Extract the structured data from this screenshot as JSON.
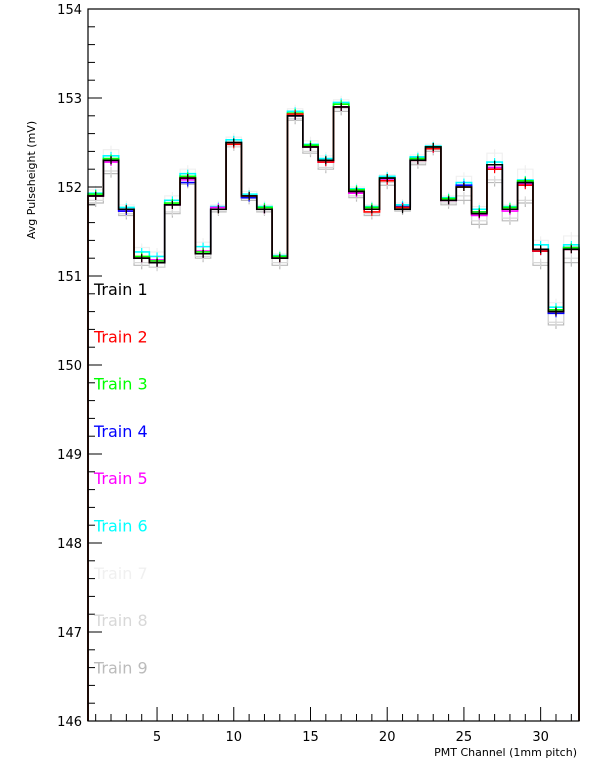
{
  "chart_data": {
    "type": "line",
    "xlabel": "PMT Channel (1mm pitch)",
    "ylabel": "Avg Pulseheight (mV)",
    "xlim": [
      0.5,
      32.5
    ],
    "ylim": [
      146,
      154
    ],
    "x_ticks": [
      5,
      10,
      15,
      20,
      25,
      30
    ],
    "y_ticks": [
      146,
      147,
      148,
      149,
      150,
      151,
      152,
      153,
      154
    ],
    "x": [
      1,
      2,
      3,
      4,
      5,
      6,
      7,
      8,
      9,
      10,
      11,
      12,
      13,
      14,
      15,
      16,
      17,
      18,
      19,
      20,
      21,
      22,
      23,
      24,
      25,
      26,
      27,
      28,
      29,
      30,
      31,
      32
    ],
    "legend_placement": "left",
    "series": [
      {
        "name": "Train 1",
        "color": "#000000",
        "values": [
          151.9,
          152.3,
          151.75,
          151.2,
          151.15,
          151.8,
          152.1,
          151.25,
          151.75,
          152.5,
          151.9,
          151.75,
          151.2,
          152.8,
          152.45,
          152.3,
          152.9,
          151.95,
          151.75,
          152.1,
          151.75,
          152.3,
          152.45,
          151.85,
          152.0,
          151.7,
          152.25,
          151.75,
          152.05,
          151.3,
          150.6,
          151.3
        ]
      },
      {
        "name": "Train 2",
        "color": "#ff0000",
        "values": [
          151.9,
          152.3,
          151.75,
          151.2,
          151.15,
          151.8,
          152.1,
          151.25,
          151.75,
          152.48,
          151.9,
          151.75,
          151.2,
          152.82,
          152.45,
          152.28,
          152.9,
          151.95,
          151.72,
          152.07,
          151.77,
          152.3,
          152.43,
          151.85,
          152.0,
          151.7,
          152.2,
          151.75,
          152.02,
          151.28,
          150.6,
          151.3
        ]
      },
      {
        "name": "Train 3",
        "color": "#00ff00",
        "values": [
          151.92,
          152.32,
          151.75,
          151.22,
          151.17,
          151.82,
          152.12,
          151.27,
          151.75,
          152.5,
          151.9,
          151.77,
          151.22,
          152.83,
          152.47,
          152.3,
          152.93,
          151.97,
          151.77,
          152.1,
          151.77,
          152.32,
          152.45,
          151.87,
          152.0,
          151.72,
          152.25,
          151.77,
          152.07,
          151.3,
          150.62,
          151.32
        ]
      },
      {
        "name": "Train 4",
        "color": "#0000ff",
        "values": [
          151.9,
          152.3,
          151.73,
          151.2,
          151.15,
          151.8,
          152.05,
          151.25,
          151.75,
          152.5,
          151.88,
          151.75,
          151.2,
          152.8,
          152.45,
          152.3,
          152.9,
          151.95,
          151.75,
          152.1,
          151.78,
          152.32,
          152.45,
          151.85,
          152.02,
          151.72,
          152.25,
          151.75,
          152.05,
          151.28,
          150.58,
          151.32
        ]
      },
      {
        "name": "Train 5",
        "color": "#ff00ff",
        "values": [
          151.9,
          152.28,
          151.73,
          151.2,
          151.18,
          151.8,
          152.08,
          151.28,
          151.77,
          152.5,
          151.9,
          151.75,
          151.22,
          152.8,
          152.45,
          152.28,
          152.9,
          151.93,
          151.75,
          152.08,
          151.77,
          152.3,
          152.43,
          151.85,
          152.0,
          151.68,
          152.22,
          151.73,
          152.03,
          151.28,
          150.6,
          151.3
        ]
      },
      {
        "name": "Train 6",
        "color": "#00ffff",
        "values": [
          151.93,
          152.35,
          151.77,
          151.27,
          151.22,
          151.85,
          152.15,
          151.33,
          151.78,
          152.53,
          151.92,
          151.78,
          151.23,
          152.85,
          152.48,
          152.32,
          152.95,
          151.98,
          151.78,
          152.12,
          151.8,
          152.34,
          152.46,
          151.88,
          152.05,
          151.75,
          152.28,
          151.78,
          152.08,
          151.35,
          150.65,
          151.35
        ]
      },
      {
        "name": "Train 7",
        "color": "#f0f0f0",
        "values": [
          151.97,
          152.42,
          151.8,
          151.32,
          151.27,
          151.9,
          152.2,
          151.38,
          151.8,
          152.56,
          151.95,
          151.8,
          151.25,
          152.88,
          152.52,
          152.35,
          152.98,
          152.0,
          151.8,
          152.14,
          151.82,
          152.36,
          152.48,
          151.9,
          152.12,
          151.78,
          152.38,
          151.8,
          152.2,
          151.4,
          150.7,
          151.45
        ]
      },
      {
        "name": "Train 8",
        "color": "#d8d8d8",
        "values": [
          151.85,
          152.18,
          151.7,
          151.15,
          151.1,
          151.72,
          152.05,
          151.22,
          151.73,
          152.45,
          151.87,
          151.73,
          151.15,
          152.77,
          152.4,
          152.22,
          152.88,
          151.9,
          151.7,
          152.05,
          151.75,
          152.27,
          152.42,
          151.82,
          151.9,
          151.62,
          152.08,
          151.65,
          151.85,
          151.15,
          150.48,
          151.2
        ]
      },
      {
        "name": "Train 9",
        "color": "#bbbbbb",
        "values": [
          151.82,
          152.15,
          151.68,
          151.12,
          151.1,
          151.7,
          152.03,
          151.2,
          151.72,
          152.45,
          151.85,
          151.72,
          151.12,
          152.75,
          152.38,
          152.2,
          152.85,
          151.88,
          151.68,
          152.02,
          151.73,
          152.25,
          152.4,
          151.8,
          151.85,
          151.58,
          152.05,
          151.62,
          151.82,
          151.12,
          150.45,
          151.15
        ]
      }
    ]
  }
}
